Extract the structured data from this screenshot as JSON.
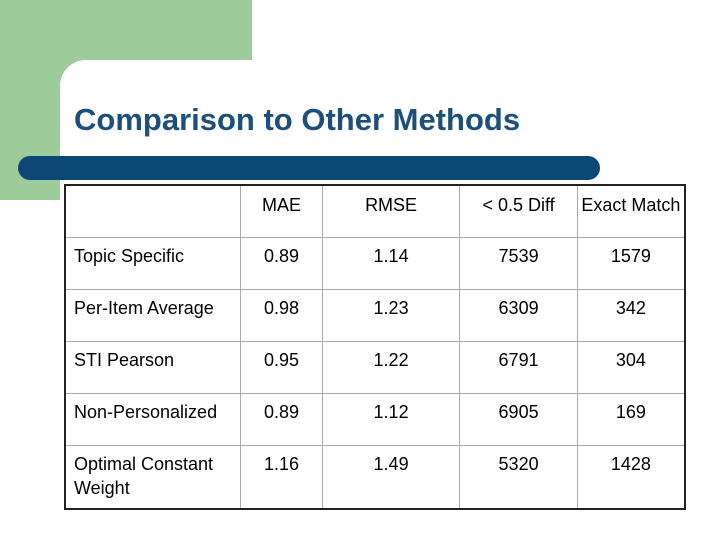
{
  "title": "Comparison to Other Methods",
  "colors": {
    "accent_green": "#9dcc9a",
    "title_blue": "#1c4f7a",
    "bar_navy": "#0c4876"
  },
  "table": {
    "headers": [
      "",
      "MAE",
      "RMSE",
      "< 0.5 Diff",
      "Exact Match"
    ],
    "rows": [
      {
        "label": "Topic Specific",
        "mae": "0.89",
        "rmse": "1.14",
        "diff": "7539",
        "exact": "1579"
      },
      {
        "label": "Per-Item Average",
        "mae": "0.98",
        "rmse": "1.23",
        "diff": "6309",
        "exact": "342"
      },
      {
        "label": "STI Pearson",
        "mae": "0.95",
        "rmse": "1.22",
        "diff": "6791",
        "exact": "304"
      },
      {
        "label": "Non-Personalized",
        "mae": "0.89",
        "rmse": "1.12",
        "diff": "6905",
        "exact": "169"
      },
      {
        "label": "Optimal Constant Weight",
        "mae": "1.16",
        "rmse": "1.49",
        "diff": "5320",
        "exact": "1428"
      }
    ]
  }
}
